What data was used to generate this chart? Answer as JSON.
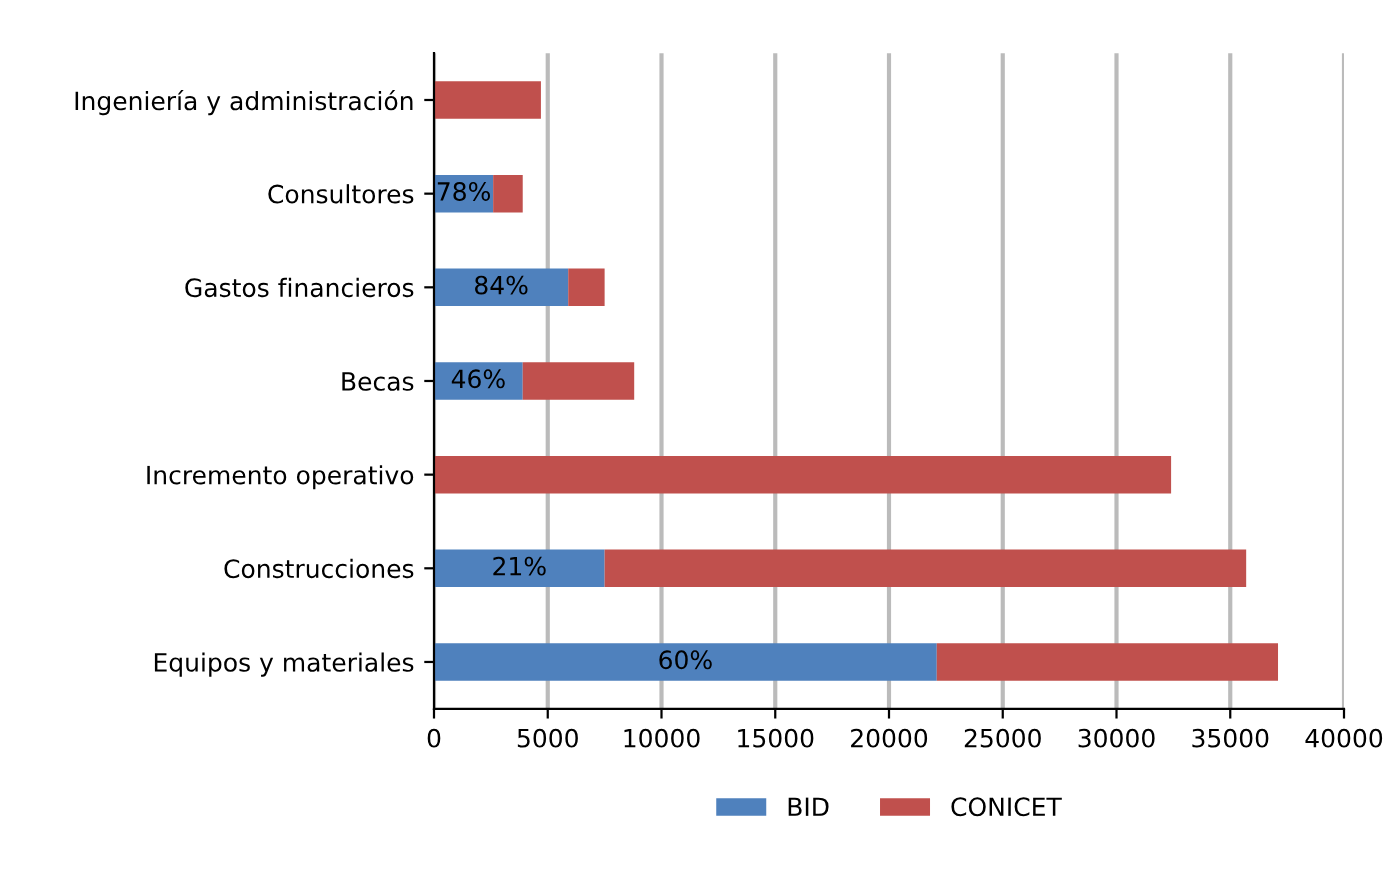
{
  "chart_data": {
    "type": "bar",
    "orientation": "horizontal",
    "stacked": true,
    "categories": [
      "Ingeniería y administración",
      "Consultores",
      "Gastos financieros",
      "Becas",
      "Incremento operativo",
      "Construcciones",
      "Equipos y materiales"
    ],
    "series": [
      {
        "name": "BID",
        "color": "#4f81bd",
        "values": [
          null,
          2600,
          5900,
          3900,
          null,
          7500,
          22100
        ]
      },
      {
        "name": "CONICET",
        "color": "#c0504d",
        "values": [
          4700,
          1300,
          1600,
          4900,
          32400,
          28200,
          15000
        ]
      }
    ],
    "xlim": [
      0,
      40000
    ],
    "xticks": [
      0,
      5000,
      10000,
      15000,
      20000,
      25000,
      30000,
      35000,
      40000
    ],
    "annotations": [
      "78%",
      "84%",
      "46%",
      "21%",
      "60%"
    ],
    "grid": "x",
    "legend": "bottom"
  }
}
